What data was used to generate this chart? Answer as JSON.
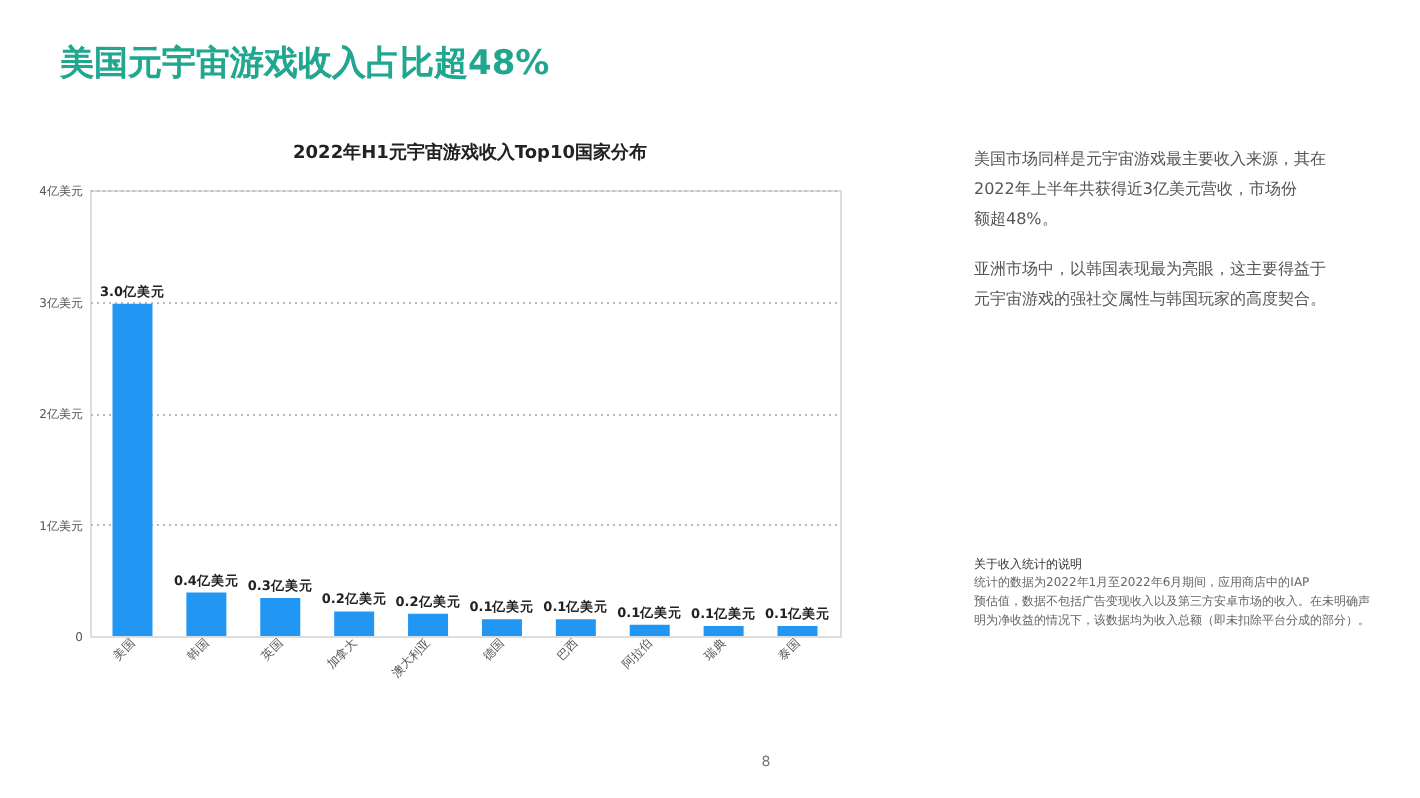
{
  "chart_data": {
    "type": "bar",
    "title": "美国元宇宙游戏收入占比超48%",
    "subtitle": "2022年H1元宇宙游戏收入Top10国家分布",
    "categories": [
      "美国",
      "韩国",
      "英国",
      "加拿大",
      "澳大利亚",
      "德国",
      "巴西",
      "阿拉伯",
      "瑞典",
      "泰国"
    ],
    "values": [
      2.98,
      0.39,
      0.34,
      0.22,
      0.2,
      0.15,
      0.15,
      0.1,
      0.09,
      0.09
    ],
    "value_labels": [
      "3.0亿美元",
      "0.4亿美元",
      "0.3亿美元",
      "0.2亿美元",
      "0.2亿美元",
      "0.1亿美元",
      "0.1亿美元",
      "0.1亿美元",
      "0.1亿美元",
      "0.1亿美元"
    ],
    "color": "#2196f3",
    "ylim": [
      0,
      4
    ],
    "yticks": [
      0,
      {
        "value": 1,
        "label": "1亿美元"
      },
      {
        "value": 2,
        "label": "2亿美元"
      },
      {
        "value": 3,
        "label": "3亿美元"
      },
      {
        "value": 4,
        "label": "4亿美元"
      }
    ],
    "grid": "y",
    "annotations": [
      "美国市场同样是元宇宙游戏最主要收入来源，其在2022年上半年共获得近3亿美元营收，市场份额超48%。",
      "亚洲市场中，以韩国表现最为亮眼，这主要得益于元宇宙游戏的强社交属性与韩国玩家的高度契合。",
      "关于收入统计的说明",
      "统计的数据为2022年1月至2022年6月期间，应用商店中的IAP预估值，数据不包括广告变现收入以及第三方安卓市场的收入。在未明确声明为净收益的情况下，该数据均为收入总额（即未扣除平台分成的部分）。",
      "8"
    ]
  }
}
